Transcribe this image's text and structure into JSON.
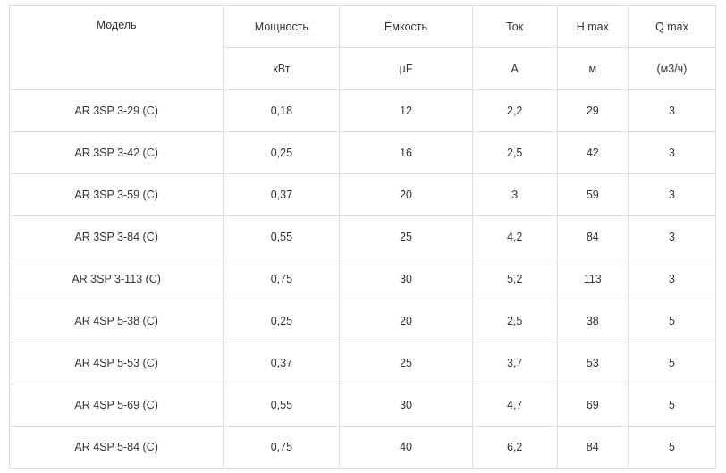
{
  "table": {
    "headers": {
      "model": "Модель",
      "power": "Мощность",
      "capacity": "Ёмкость",
      "current": "Ток",
      "hmax": "H max",
      "qmax": "Q max"
    },
    "units": {
      "power": "кВт",
      "capacity": "µF",
      "current": "A",
      "hmax": "м",
      "qmax": "(м3/ч)"
    },
    "rows": [
      [
        "AR 3SP 3-29 (C)",
        "0,18",
        "12",
        "2,2",
        "29",
        "3"
      ],
      [
        "AR 3SP 3-42 (C)",
        "0,25",
        "16",
        "2,5",
        "42",
        "3"
      ],
      [
        "AR 3SP 3-59 (C)",
        "0,37",
        "20",
        "3",
        "59",
        "3"
      ],
      [
        "AR 3SP 3-84 (C)",
        "0,55",
        "25",
        "4,2",
        "84",
        "3"
      ],
      [
        "AR 3SP 3-113 (C)",
        "0,75",
        "30",
        "5,2",
        "113",
        "3"
      ],
      [
        "AR 4SP 5-38 (C)",
        "0,25",
        "20",
        "2,5",
        "38",
        "5"
      ],
      [
        "AR 4SP 5-53 (C)",
        "0,37",
        "25",
        "3,7",
        "53",
        "5"
      ],
      [
        "AR 4SP 5-69 (C)",
        "0,55",
        "30",
        "4,7",
        "69",
        "5"
      ],
      [
        "AR 4SP 5-84 (C)",
        "0,75",
        "40",
        "6,2",
        "84",
        "5"
      ]
    ]
  }
}
